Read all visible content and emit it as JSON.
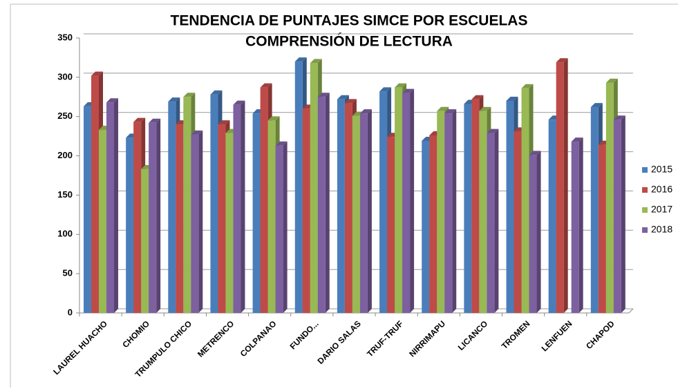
{
  "chart_data": {
    "type": "bar",
    "title": [
      "TENDENCIA DE PUNTAJES SIMCE POR ESCUELAS",
      "COMPRENSIÓN DE LECTURA"
    ],
    "categories": [
      "LAUREL HUACHO",
      "CHOMIO",
      "TRUMPULO CHICO",
      "METRENCO",
      "COLPANAO",
      "FUNDO...",
      "DARIO SALAS",
      "TRUF-TRUF",
      "NIRRIMAPU",
      "LICANCO",
      "TROMEN",
      "LENFUEN",
      "CHAPOD"
    ],
    "series": [
      {
        "name": "2015",
        "color": "#4a7ebb",
        "values": [
          263,
          223,
          269,
          278,
          254,
          320,
          272,
          282,
          219,
          266,
          270,
          246,
          262
        ]
      },
      {
        "name": "2016",
        "color": "#be4b48",
        "values": [
          302,
          243,
          240,
          240,
          287,
          260,
          267,
          224,
          226,
          272,
          231,
          319,
          214
        ]
      },
      {
        "name": "2017",
        "color": "#98b954",
        "values": [
          233,
          183,
          275,
          229,
          245,
          318,
          251,
          287,
          257,
          257,
          286,
          null,
          293
        ]
      },
      {
        "name": "2018",
        "color": "#7d60a0",
        "values": [
          268,
          242,
          227,
          265,
          213,
          275,
          254,
          280,
          254,
          229,
          201,
          218,
          246
        ]
      }
    ],
    "ylim": [
      0,
      350
    ],
    "yticks": [
      0,
      50,
      100,
      150,
      200,
      250,
      300,
      350
    ],
    "grid": true,
    "legend": "right"
  }
}
